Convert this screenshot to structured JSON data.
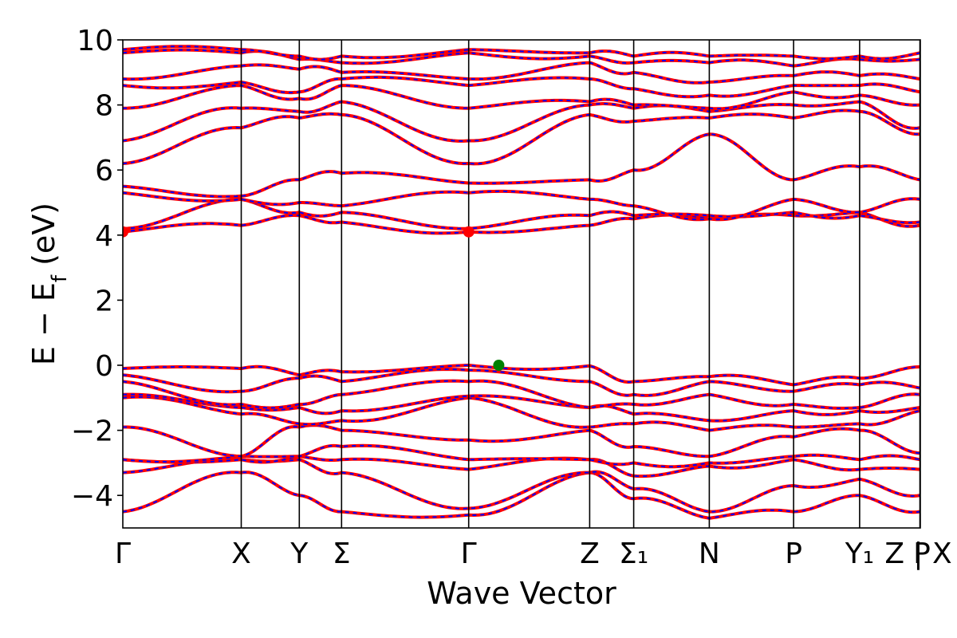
{
  "chart_data": {
    "type": "line",
    "title": "",
    "xlabel": "Wave Vector",
    "ylabel": "E − E",
    "ylabel_sub": "f",
    "ylabel_unit": " (eV)",
    "ylim": [
      -5,
      10
    ],
    "yticks": [
      {
        "value": 10,
        "label": "10"
      },
      {
        "value": 8,
        "label": "8"
      },
      {
        "value": 6,
        "label": "6"
      },
      {
        "value": 4,
        "label": "4"
      },
      {
        "value": 2,
        "label": "2"
      },
      {
        "value": 0,
        "label": "0"
      },
      {
        "value": -2,
        "label": "−2"
      },
      {
        "value": -4,
        "label": "−4"
      }
    ],
    "kpath": [
      {
        "label": "Γ",
        "sub": "",
        "pos": 0.0
      },
      {
        "label": "X",
        "sub": "",
        "pos": 0.1485
      },
      {
        "label": "Y",
        "sub": "",
        "pos": 0.2213
      },
      {
        "label": "Σ",
        "sub": "",
        "pos": 0.2743
      },
      {
        "label": "Γ",
        "sub": "",
        "pos": 0.4337
      },
      {
        "label": "Z",
        "sub": "",
        "pos": 0.5854
      },
      {
        "label": "Σ",
        "sub": "1",
        "pos": 0.6406
      },
      {
        "label": "N",
        "sub": "",
        "pos": 0.7354
      },
      {
        "label": "P",
        "sub": "",
        "pos": 0.8411
      },
      {
        "label": "Y",
        "sub": "1",
        "pos": 0.9239
      },
      {
        "label": "Z | X",
        "sub": "",
        "pos": 1.0
      },
      {
        "label": "P",
        "sub": "",
        "pos": 1.0
      }
    ],
    "kpath_display": [
      {
        "label": "Γ",
        "pos": 0.0
      },
      {
        "label": "X",
        "pos": 0.1485
      },
      {
        "label": "Y",
        "pos": 0.2213
      },
      {
        "label": "Σ",
        "pos": 0.2743
      },
      {
        "label": "Γ",
        "pos": 0.4337
      },
      {
        "label": "Z",
        "pos": 0.5854
      },
      {
        "label": "Σ₁",
        "pos": 0.6406
      },
      {
        "label": "N",
        "pos": 0.7354
      },
      {
        "label": "P",
        "pos": 0.8411
      },
      {
        "label": "Y₁",
        "pos": 0.9239
      },
      {
        "label": "Z | X",
        "pos": 0.9995
      },
      {
        "label": "P",
        "pos": 1.0
      }
    ],
    "vlines": [
      0.1485,
      0.2213,
      0.2743,
      0.4337,
      0.5854,
      0.6406,
      0.7354,
      0.8411,
      0.9239,
      0.9995
    ],
    "series_style": {
      "line_color": "#ff0000",
      "dash_color": "#0000ff"
    },
    "band_edges": {
      "vbm": {
        "k": 0.4714,
        "E": 0.0,
        "color": "#008000"
      },
      "cbm": [
        {
          "k": 0.0,
          "E": 4.1,
          "color": "#ff0000"
        },
        {
          "k": 0.4337,
          "E": 4.1,
          "color": "#ff0000"
        }
      ]
    },
    "bands": [
      {
        "E": [
          -4.5,
          -3.3,
          -4.0,
          -4.5,
          -4.6,
          -3.3,
          -4.1,
          -4.7,
          -4.5,
          -4.0,
          -4.5,
          -4.5
        ]
      },
      {
        "E": [
          -3.3,
          -2.9,
          -2.9,
          -3.3,
          -4.4,
          -3.3,
          -3.8,
          -4.5,
          -3.7,
          -3.5,
          -4.0,
          -3.7
        ]
      },
      {
        "E": [
          -2.9,
          -2.9,
          -2.8,
          -2.9,
          -3.2,
          -2.9,
          -3.4,
          -3.1,
          -2.9,
          -3.2,
          -3.2,
          -3.3
        ]
      },
      {
        "E": [
          -2.9,
          -2.8,
          -2.8,
          -2.5,
          -2.9,
          -2.9,
          -3.0,
          -3.0,
          -2.8,
          -2.9,
          -2.9,
          -2.8
        ]
      },
      {
        "E": [
          -1.9,
          -2.8,
          -1.9,
          -2.0,
          -2.3,
          -2.0,
          -2.5,
          -2.8,
          -2.2,
          -2.0,
          -2.7,
          -2.5
        ]
      },
      {
        "E": [
          -1.0,
          -1.5,
          -1.8,
          -1.7,
          -1.0,
          -1.9,
          -1.8,
          -2.0,
          -1.9,
          -1.8,
          -1.4,
          -1.5
        ]
      },
      {
        "E": [
          -0.9,
          -1.3,
          -1.3,
          -1.4,
          -0.95,
          -1.3,
          -1.5,
          -1.7,
          -1.4,
          -1.4,
          -1.3,
          -1.3
        ]
      },
      {
        "E": [
          -0.5,
          -1.2,
          -1.2,
          -0.9,
          -0.5,
          -1.3,
          -1.2,
          -0.9,
          -1.2,
          -1.3,
          -0.9,
          -1.2
        ]
      },
      {
        "E": [
          -0.3,
          -0.8,
          -0.4,
          -0.5,
          -0.15,
          -0.5,
          -0.9,
          -0.5,
          -0.8,
          -0.6,
          -0.7,
          -0.8
        ]
      },
      {
        "E": [
          -0.1,
          -0.1,
          -0.3,
          -0.2,
          0.0,
          -0.02,
          -0.5,
          -0.35,
          -0.6,
          -0.4,
          -0.05,
          -0.4
        ]
      },
      {
        "E": [
          4.1,
          4.3,
          4.6,
          4.4,
          4.1,
          4.3,
          4.5,
          4.5,
          4.6,
          4.7,
          4.3,
          4.5
        ]
      },
      {
        "E": [
          4.2,
          5.1,
          4.7,
          4.7,
          4.2,
          4.6,
          4.6,
          4.6,
          4.7,
          4.6,
          4.4,
          4.6
        ]
      },
      {
        "E": [
          5.3,
          5.1,
          5.0,
          4.9,
          5.3,
          5.1,
          4.9,
          4.5,
          5.1,
          4.7,
          5.1,
          5.1
        ]
      },
      {
        "E": [
          5.5,
          5.2,
          5.7,
          5.9,
          5.6,
          5.7,
          6.0,
          7.1,
          5.7,
          6.1,
          5.7,
          5.7
        ]
      },
      {
        "E": [
          6.2,
          7.3,
          7.6,
          7.7,
          6.2,
          7.7,
          7.5,
          7.6,
          7.6,
          7.8,
          7.1,
          7.6
        ]
      },
      {
        "E": [
          6.9,
          7.9,
          7.8,
          8.1,
          6.9,
          8.0,
          7.9,
          7.8,
          8.0,
          8.1,
          7.3,
          8.2
        ]
      },
      {
        "E": [
          7.9,
          8.6,
          8.2,
          8.6,
          7.9,
          8.1,
          8.0,
          7.9,
          8.4,
          8.3,
          8.0,
          8.4
        ]
      },
      {
        "E": [
          8.6,
          8.7,
          8.4,
          8.8,
          8.6,
          8.8,
          8.5,
          8.3,
          8.6,
          8.6,
          8.4,
          8.7
        ]
      },
      {
        "E": [
          8.8,
          9.2,
          9.1,
          9.0,
          8.8,
          9.3,
          9.0,
          8.7,
          8.9,
          8.9,
          8.8,
          9.0
        ]
      },
      {
        "E": [
          9.6,
          9.6,
          9.4,
          9.3,
          9.6,
          9.5,
          9.3,
          9.3,
          9.2,
          9.4,
          9.4,
          9.4
        ]
      },
      {
        "E": [
          9.7,
          9.7,
          9.5,
          9.5,
          9.7,
          9.6,
          9.5,
          9.5,
          9.5,
          9.5,
          9.6,
          9.5
        ]
      }
    ]
  }
}
